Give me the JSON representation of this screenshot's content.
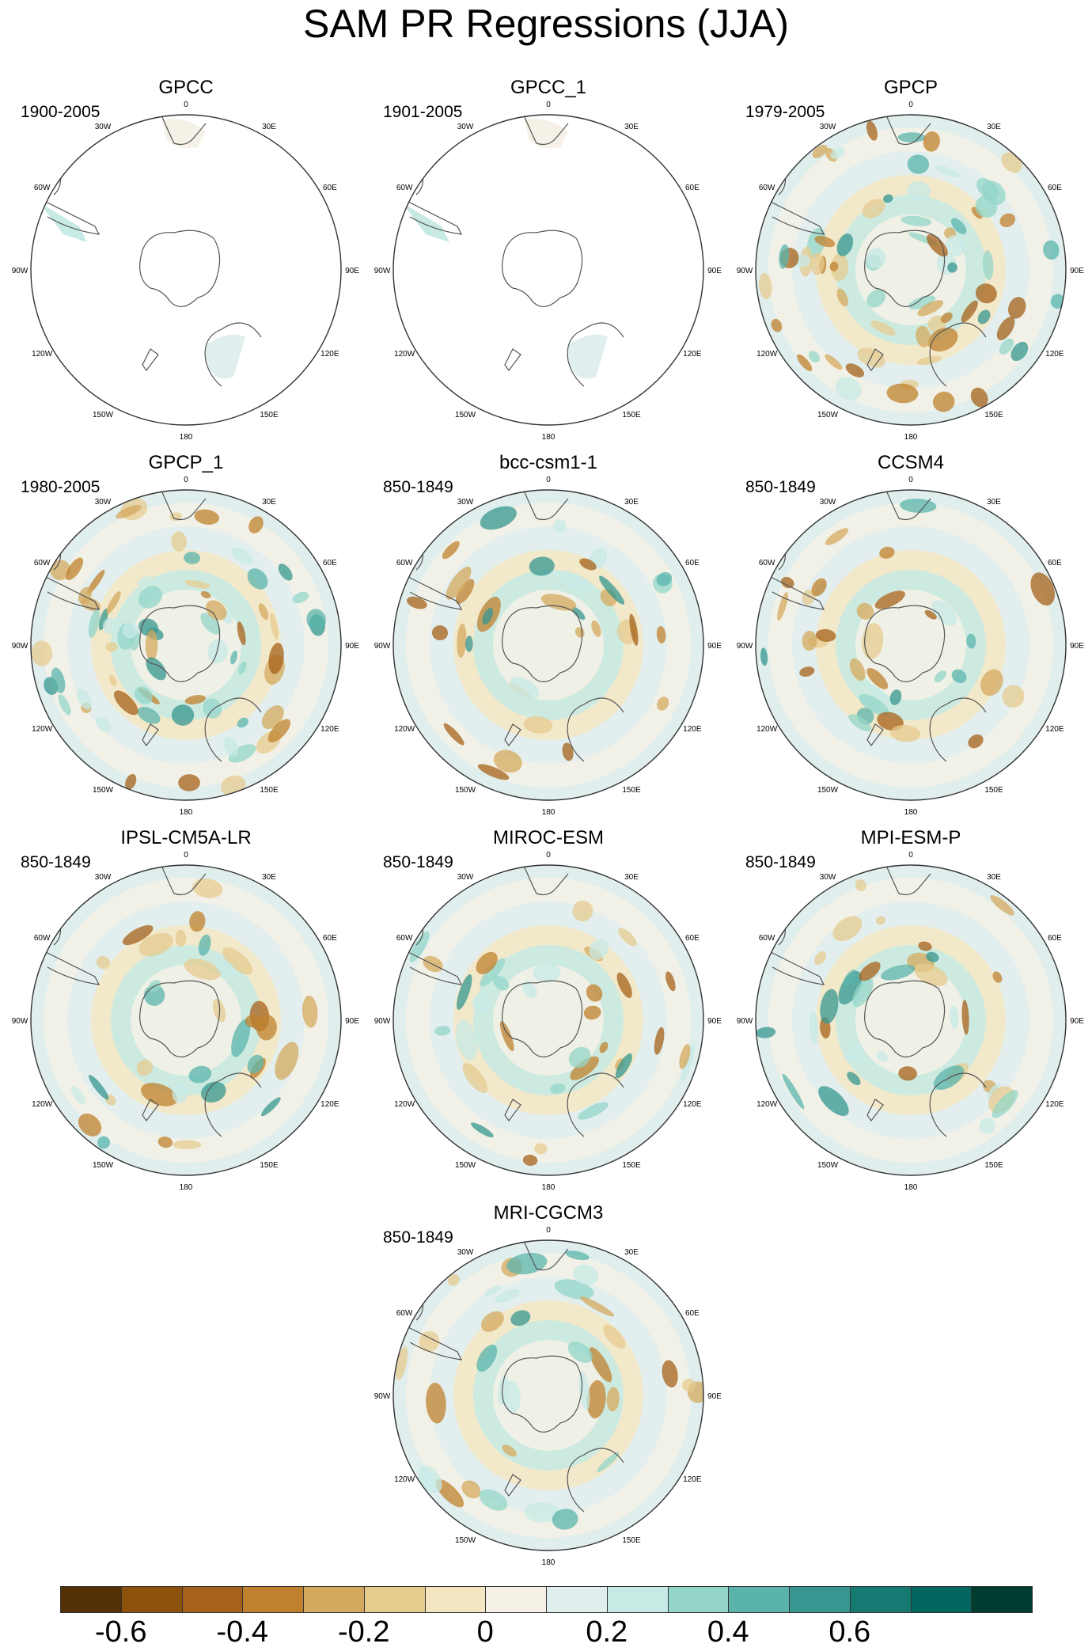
{
  "title": "SAM PR Regressions (JJA)",
  "longitude_labels": [
    "0",
    "30E",
    "60E",
    "90E",
    "120E",
    "150E",
    "180",
    "150W",
    "120W",
    "90W",
    "60W",
    "30W"
  ],
  "panels": [
    {
      "name": "GPCC",
      "period": "1900-2005",
      "coverage": "land"
    },
    {
      "name": "GPCC_1",
      "period": "1901-2005",
      "coverage": "land"
    },
    {
      "name": "GPCP",
      "period": "1979-2005",
      "coverage": "full"
    },
    {
      "name": "GPCP_1",
      "period": "1980-2005",
      "coverage": "full"
    },
    {
      "name": "bcc-csm1-1",
      "period": "850-1849",
      "coverage": "full"
    },
    {
      "name": "CCSM4",
      "period": "850-1849",
      "coverage": "full"
    },
    {
      "name": "IPSL-CM5A-LR",
      "period": "850-1849",
      "coverage": "full"
    },
    {
      "name": "MIROC-ESM",
      "period": "850-1849",
      "coverage": "full"
    },
    {
      "name": "MPI-ESM-P",
      "period": "850-1849",
      "coverage": "full"
    },
    {
      "name": "MRI-CGCM3",
      "period": "850-1849",
      "coverage": "full"
    }
  ],
  "colorbar": {
    "colors": [
      "#543005",
      "#8c510a",
      "#a6611a",
      "#bf812d",
      "#d4a95e",
      "#e6cb8f",
      "#f5e6c3",
      "#f5f1e6",
      "#e0efee",
      "#c7eae5",
      "#93d5c8",
      "#5ab4ac",
      "#35978f",
      "#167a72",
      "#01665e",
      "#003c30"
    ],
    "labels": [
      "-0.6",
      "-0.4",
      "-0.2",
      "0",
      "0.2",
      "0.4",
      "0.6"
    ]
  }
}
